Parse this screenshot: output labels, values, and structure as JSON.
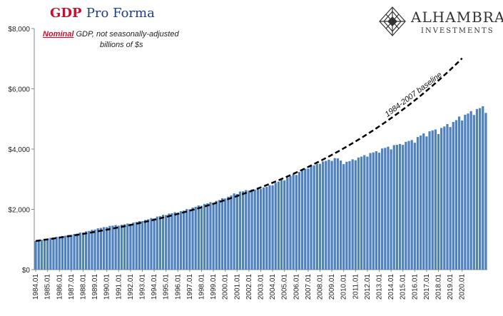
{
  "header": {
    "title_gdp": "GDP",
    "title_rest": "Pro Forma",
    "subtitle_nominal": "Nominal",
    "subtitle_rest": " GDP, not seasonally-adjusted",
    "subtitle_units": "billions of $s"
  },
  "logo": {
    "name": "ALHAMBRA",
    "sub": "INVESTMENTS",
    "icon": "diamond-lattice-icon"
  },
  "colors": {
    "bar": "#4f81bd",
    "title_red": "#c8102e",
    "title_blue": "#1f3c88",
    "baseline": "#000000",
    "gridline": "#d9d9d9"
  },
  "chart_data": {
    "type": "bar",
    "title": "GDP Pro Forma",
    "ylim": [
      0,
      8000
    ],
    "ytick_values": [
      0,
      2000,
      4000,
      6000,
      8000
    ],
    "ytick_labels": [
      "$0",
      "$2,000",
      "$4,000",
      "$6,000",
      "$8,000"
    ],
    "grid": false,
    "xtick_labels": [
      "1984.01",
      "1985.01",
      "1986.01",
      "1987.01",
      "1988.01",
      "1989.01",
      "1990.01",
      "1991.01",
      "1992.01",
      "1993.01",
      "1994.01",
      "1995.01",
      "1996.01",
      "1997.01",
      "1998.01",
      "1999.01",
      "2000.01",
      "2001.01",
      "2002.01",
      "2003.01",
      "2004.01",
      "2005.01",
      "2006.01",
      "2007.01",
      "2008.01",
      "2009.01",
      "2010.01",
      "2011.01",
      "2012.01",
      "2013.01",
      "2014.01",
      "2015.01",
      "2016.01",
      "2017.01",
      "2018.01",
      "2019.01",
      "2020.01"
    ],
    "series": [
      {
        "type": "bar",
        "start_year": 1984,
        "quarters_per_year": 4,
        "values": [
          950,
          980,
          995,
          1020,
          1030,
          1055,
          1065,
          1090,
          1095,
          1115,
          1125,
          1150,
          1150,
          1185,
          1195,
          1230,
          1230,
          1270,
          1285,
          1320,
          1330,
          1370,
          1385,
          1410,
          1410,
          1450,
          1460,
          1480,
          1460,
          1490,
          1505,
          1530,
          1520,
          1565,
          1580,
          1610,
          1610,
          1650,
          1670,
          1710,
          1700,
          1760,
          1775,
          1820,
          1810,
          1860,
          1870,
          1905,
          1890,
          1940,
          1960,
          2010,
          2000,
          2060,
          2085,
          2130,
          2120,
          2180,
          2200,
          2240,
          2220,
          2280,
          2310,
          2370,
          2360,
          2420,
          2460,
          2530,
          2510,
          2590,
          2600,
          2640,
          2620,
          2660,
          2660,
          2700,
          2680,
          2730,
          2750,
          2800,
          2800,
          2880,
          2920,
          2980,
          2960,
          3060,
          3100,
          3170,
          3140,
          3240,
          3290,
          3350,
          3350,
          3440,
          3460,
          3510,
          3510,
          3590,
          3610,
          3650,
          3610,
          3700,
          3690,
          3620,
          3500,
          3580,
          3600,
          3660,
          3630,
          3720,
          3750,
          3800,
          3750,
          3870,
          3890,
          3930,
          3880,
          4020,
          4040,
          4080,
          3990,
          4130,
          4140,
          4170,
          4140,
          4240,
          4270,
          4300,
          4210,
          4400,
          4450,
          4520,
          4420,
          4590,
          4620,
          4650,
          4500,
          4700,
          4750,
          4830,
          4730,
          4900,
          4960,
          5080,
          4950,
          5140,
          5180,
          5260,
          5130,
          5330,
          5360,
          5420,
          5200
        ]
      },
      {
        "type": "line",
        "name": "1984-2007 baseline",
        "style": "dashed",
        "x_start": 1984.0,
        "x_end": 2020.0,
        "y_start": 950,
        "growth_rate_annual": 0.0571
      }
    ],
    "annotations": [
      {
        "text": "1984-2007 baseline"
      }
    ]
  }
}
